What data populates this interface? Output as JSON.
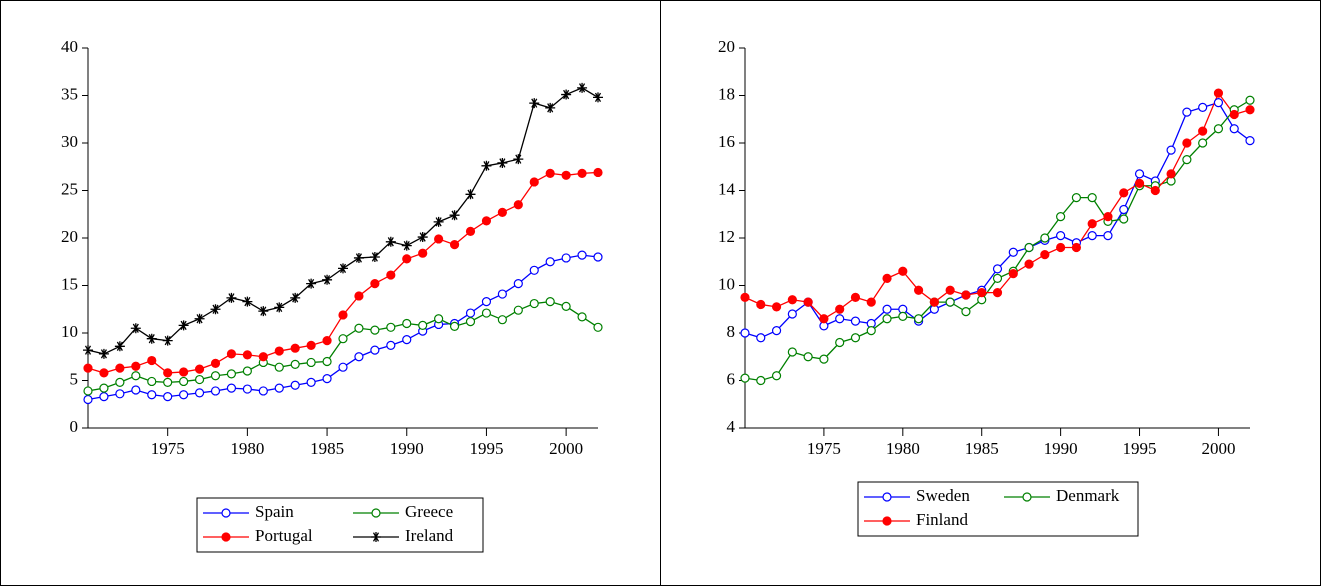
{
  "chart_data": [
    {
      "type": "line",
      "x": [
        1970,
        1971,
        1972,
        1973,
        1974,
        1975,
        1976,
        1977,
        1978,
        1979,
        1980,
        1981,
        1982,
        1983,
        1984,
        1985,
        1986,
        1987,
        1988,
        1989,
        1990,
        1991,
        1992,
        1993,
        1994,
        1995,
        1996,
        1997,
        1998,
        1999,
        2000,
        2001,
        2002
      ],
      "xlim": [
        1970,
        2002
      ],
      "xticks": [
        1975,
        1980,
        1985,
        1990,
        1995,
        2000
      ],
      "ylim": [
        0,
        40
      ],
      "yticks": [
        0,
        5,
        10,
        15,
        20,
        25,
        30,
        35,
        40
      ],
      "legend": "bottom",
      "series": [
        {
          "name": "Spain",
          "color": "#0000ff",
          "marker": "open-circle",
          "values": [
            3.0,
            3.3,
            3.6,
            4.0,
            3.5,
            3.3,
            3.5,
            3.7,
            3.9,
            4.2,
            4.1,
            3.9,
            4.2,
            4.5,
            4.8,
            5.2,
            6.4,
            7.5,
            8.2,
            8.7,
            9.3,
            10.2,
            10.9,
            11.0,
            12.1,
            13.3,
            14.1,
            15.2,
            16.6,
            17.5,
            17.9,
            18.2,
            18.0
          ]
        },
        {
          "name": "Greece",
          "color": "#008000",
          "marker": "open-circle",
          "values": [
            3.9,
            4.2,
            4.8,
            5.5,
            4.9,
            4.8,
            4.9,
            5.1,
            5.5,
            5.7,
            6.0,
            6.9,
            6.4,
            6.7,
            6.9,
            7.0,
            9.4,
            10.5,
            10.3,
            10.6,
            11.0,
            10.8,
            11.5,
            10.7,
            11.2,
            12.1,
            11.4,
            12.4,
            13.1,
            13.3,
            12.8,
            11.7,
            10.6
          ]
        },
        {
          "name": "Portugal",
          "color": "#ff0000",
          "marker": "filled-circle",
          "values": [
            6.3,
            5.8,
            6.3,
            6.5,
            7.1,
            5.8,
            5.9,
            6.2,
            6.8,
            7.8,
            7.7,
            7.5,
            8.1,
            8.4,
            8.7,
            9.2,
            11.9,
            13.9,
            15.2,
            16.1,
            17.8,
            18.4,
            19.9,
            19.3,
            20.7,
            21.8,
            22.7,
            23.5,
            25.9,
            26.8,
            26.6,
            26.8,
            26.9
          ]
        },
        {
          "name": "Ireland",
          "color": "#000000",
          "marker": "star",
          "values": [
            8.2,
            7.8,
            8.6,
            10.5,
            9.4,
            9.2,
            10.8,
            11.5,
            12.5,
            13.7,
            13.3,
            12.3,
            12.7,
            13.7,
            15.2,
            15.6,
            16.8,
            17.9,
            18.0,
            19.6,
            19.2,
            20.1,
            21.7,
            22.4,
            24.6,
            27.6,
            27.9,
            28.3,
            34.2,
            33.7,
            35.1,
            35.8,
            34.8
          ]
        }
      ]
    },
    {
      "type": "line",
      "x": [
        1970,
        1971,
        1972,
        1973,
        1974,
        1975,
        1976,
        1977,
        1978,
        1979,
        1980,
        1981,
        1982,
        1983,
        1984,
        1985,
        1986,
        1987,
        1988,
        1989,
        1990,
        1991,
        1992,
        1993,
        1994,
        1995,
        1996,
        1997,
        1998,
        1999,
        2000,
        2001,
        2002
      ],
      "xlim": [
        1970,
        2002
      ],
      "xticks": [
        1975,
        1980,
        1985,
        1990,
        1995,
        2000
      ],
      "ylim": [
        4,
        20
      ],
      "yticks": [
        4,
        6,
        8,
        10,
        12,
        14,
        16,
        18,
        20
      ],
      "legend": "bottom",
      "series": [
        {
          "name": "Sweden",
          "color": "#0000ff",
          "marker": "open-circle",
          "values": [
            8.0,
            7.8,
            8.1,
            8.8,
            9.3,
            8.3,
            8.6,
            8.5,
            8.4,
            9.0,
            9.0,
            8.5,
            9.0,
            9.3,
            9.6,
            9.8,
            10.7,
            11.4,
            11.6,
            11.9,
            12.1,
            11.8,
            12.1,
            12.1,
            13.2,
            14.7,
            14.4,
            15.7,
            17.3,
            17.5,
            17.7,
            16.6,
            16.1
          ]
        },
        {
          "name": "Denmark",
          "color": "#008000",
          "marker": "open-circle",
          "values": [
            6.1,
            6.0,
            6.2,
            7.2,
            7.0,
            6.9,
            7.6,
            7.8,
            8.1,
            8.6,
            8.7,
            8.6,
            9.3,
            9.3,
            8.9,
            9.4,
            10.3,
            10.6,
            11.6,
            12.0,
            12.9,
            13.7,
            13.7,
            12.7,
            12.8,
            14.2,
            14.2,
            14.4,
            15.3,
            16.0,
            16.6,
            17.4,
            17.8
          ]
        },
        {
          "name": "Finland",
          "color": "#ff0000",
          "marker": "filled-circle",
          "values": [
            9.5,
            9.2,
            9.1,
            9.4,
            9.3,
            8.6,
            9.0,
            9.5,
            9.3,
            10.3,
            10.6,
            9.8,
            9.3,
            9.8,
            9.6,
            9.7,
            9.7,
            10.5,
            10.9,
            11.3,
            11.6,
            11.6,
            12.6,
            12.9,
            13.9,
            14.3,
            14.0,
            14.7,
            16.0,
            16.5,
            18.1,
            17.2,
            17.4
          ]
        }
      ]
    }
  ]
}
